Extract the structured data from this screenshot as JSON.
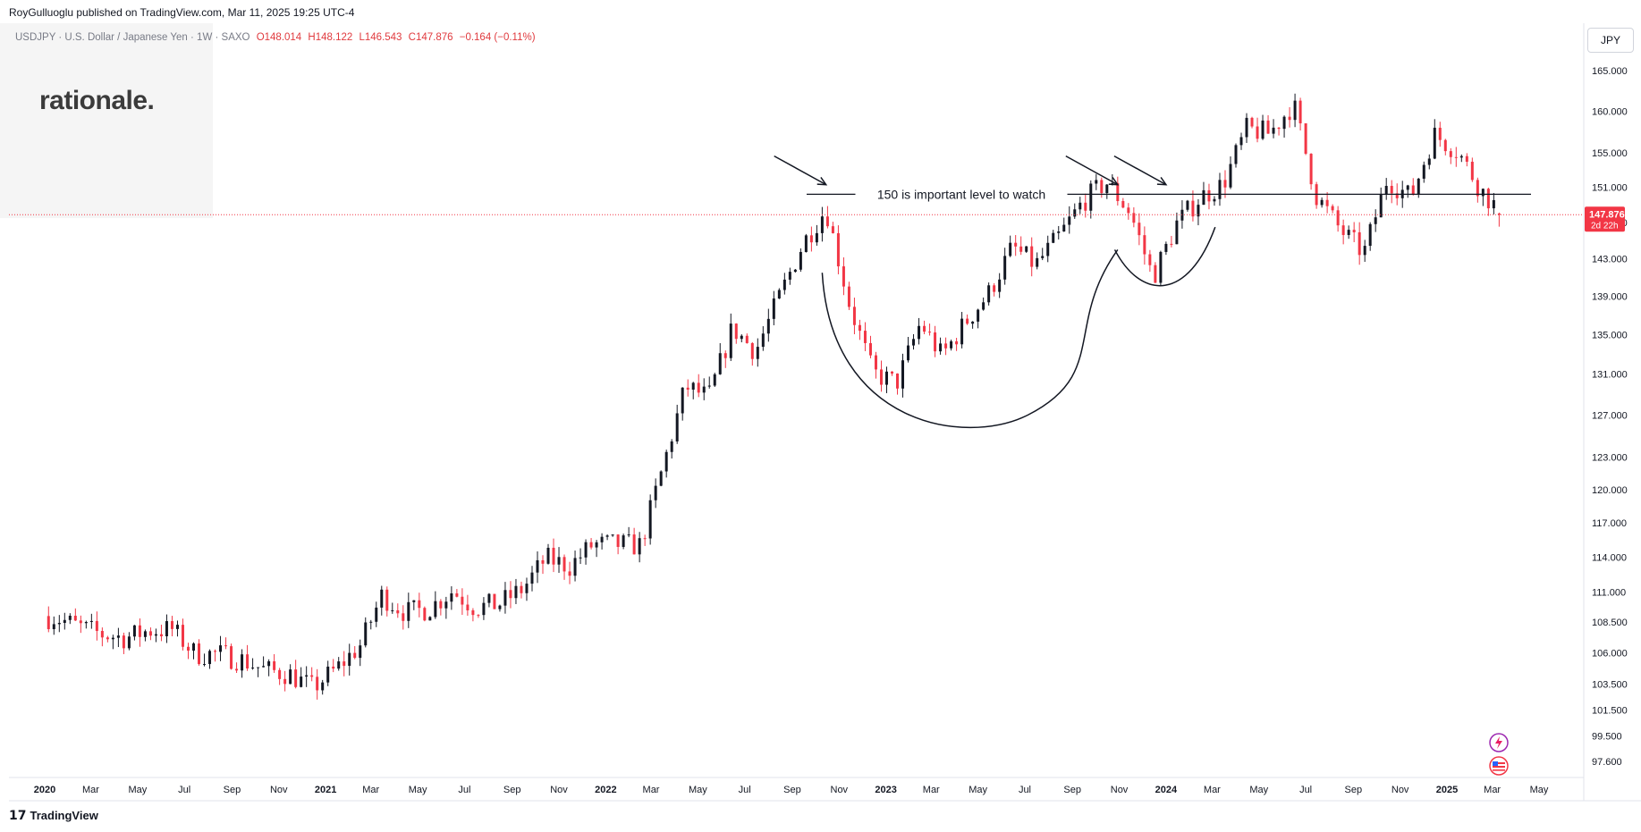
{
  "header": {
    "publisher": "RoyGulluoglu published on TradingView.com, Mar 11, 2025 19:25 UTC-4"
  },
  "legend": {
    "symbol": "USDJPY · U.S. Dollar / Japanese Yen · 1W · SAXO",
    "open": "O148.014",
    "high": "H148.122",
    "low": "L146.543",
    "close": "C147.876",
    "change": "−0.164 (−0.11%)"
  },
  "branding": {
    "watermark": "rationale.",
    "footer": "TradingView"
  },
  "currency_button": "JPY",
  "price_tag": {
    "price": "147.876",
    "countdown": "2d 22h"
  },
  "colors": {
    "up": "#131722",
    "down": "#f23645",
    "current_line": "#f23645",
    "annotation": "#131722"
  },
  "chart_data": {
    "type": "candlestick",
    "title": "",
    "interval": "1W",
    "y_scale": "log",
    "ylim": [
      96.5,
      167
    ],
    "y_ticks": [
      165,
      160,
      155,
      151,
      147,
      143,
      139,
      135,
      131,
      127,
      123,
      120,
      117,
      114,
      111,
      108.5,
      106,
      103.5,
      101.5,
      99.5,
      97.6
    ],
    "y_tick_labels": [
      "165.000",
      "160.000",
      "155.000",
      "151.000",
      "147.000",
      "143.000",
      "139.000",
      "135.000",
      "131.000",
      "127.000",
      "123.000",
      "120.000",
      "117.000",
      "114.000",
      "111.000",
      "108.500",
      "106.000",
      "103.500",
      "101.500",
      "99.500",
      "97.600"
    ],
    "x_ticks": [
      {
        "label": "2020",
        "date": "2020-01-01",
        "bold": true
      },
      {
        "label": "Mar",
        "date": "2020-03-01"
      },
      {
        "label": "May",
        "date": "2020-05-01"
      },
      {
        "label": "Jul",
        "date": "2020-07-01"
      },
      {
        "label": "Sep",
        "date": "2020-09-01"
      },
      {
        "label": "Nov",
        "date": "2020-11-01"
      },
      {
        "label": "2021",
        "date": "2021-01-01",
        "bold": true
      },
      {
        "label": "Mar",
        "date": "2021-03-01"
      },
      {
        "label": "May",
        "date": "2021-05-01"
      },
      {
        "label": "Jul",
        "date": "2021-07-01"
      },
      {
        "label": "Sep",
        "date": "2021-09-01"
      },
      {
        "label": "Nov",
        "date": "2021-11-01"
      },
      {
        "label": "2022",
        "date": "2022-01-01",
        "bold": true
      },
      {
        "label": "Mar",
        "date": "2022-03-01"
      },
      {
        "label": "May",
        "date": "2022-05-01"
      },
      {
        "label": "Jul",
        "date": "2022-07-01"
      },
      {
        "label": "Sep",
        "date": "2022-09-01"
      },
      {
        "label": "Nov",
        "date": "2022-11-01"
      },
      {
        "label": "2023",
        "date": "2023-01-01",
        "bold": true
      },
      {
        "label": "Mar",
        "date": "2023-03-01"
      },
      {
        "label": "May",
        "date": "2023-05-01"
      },
      {
        "label": "Jul",
        "date": "2023-07-01"
      },
      {
        "label": "Sep",
        "date": "2023-09-01"
      },
      {
        "label": "Nov",
        "date": "2023-11-01"
      },
      {
        "label": "2024",
        "date": "2024-01-01",
        "bold": true
      },
      {
        "label": "Mar",
        "date": "2024-03-01"
      },
      {
        "label": "May",
        "date": "2024-05-01"
      },
      {
        "label": "Jul",
        "date": "2024-07-01"
      },
      {
        "label": "Sep",
        "date": "2024-09-01"
      },
      {
        "label": "Nov",
        "date": "2024-11-01"
      },
      {
        "label": "2025",
        "date": "2025-01-01",
        "bold": true
      },
      {
        "label": "Mar",
        "date": "2025-03-01"
      },
      {
        "label": "May",
        "date": "2025-05-01"
      }
    ],
    "monthly_close": [
      {
        "month": "2020-01",
        "close": 108.9
      },
      {
        "month": "2020-02",
        "close": 108.1
      },
      {
        "month": "2020-03",
        "close": 107.5
      },
      {
        "month": "2020-04",
        "close": 107.2
      },
      {
        "month": "2020-05",
        "close": 107.8
      },
      {
        "month": "2020-06",
        "close": 107.9
      },
      {
        "month": "2020-07",
        "close": 105.9
      },
      {
        "month": "2020-08",
        "close": 105.9
      },
      {
        "month": "2020-09",
        "close": 105.4
      },
      {
        "month": "2020-10",
        "close": 104.6
      },
      {
        "month": "2020-11",
        "close": 104.3
      },
      {
        "month": "2020-12",
        "close": 103.2
      },
      {
        "month": "2021-01",
        "close": 104.7
      },
      {
        "month": "2021-02",
        "close": 106.6
      },
      {
        "month": "2021-03",
        "close": 110.7
      },
      {
        "month": "2021-04",
        "close": 109.3
      },
      {
        "month": "2021-05",
        "close": 109.6
      },
      {
        "month": "2021-06",
        "close": 111.1
      },
      {
        "month": "2021-07",
        "close": 109.7
      },
      {
        "month": "2021-08",
        "close": 110.0
      },
      {
        "month": "2021-09",
        "close": 111.3
      },
      {
        "month": "2021-10",
        "close": 113.9
      },
      {
        "month": "2021-11",
        "close": 113.2
      },
      {
        "month": "2021-12",
        "close": 115.1
      },
      {
        "month": "2022-01",
        "close": 115.1
      },
      {
        "month": "2022-02",
        "close": 115.0
      },
      {
        "month": "2022-03",
        "close": 121.7
      },
      {
        "month": "2022-04",
        "close": 129.8
      },
      {
        "month": "2022-05",
        "close": 128.7
      },
      {
        "month": "2022-06",
        "close": 135.7
      },
      {
        "month": "2022-07",
        "close": 133.3
      },
      {
        "month": "2022-08",
        "close": 138.9
      },
      {
        "month": "2022-09",
        "close": 144.7
      },
      {
        "month": "2022-10",
        "close": 148.6
      },
      {
        "month": "2022-11",
        "close": 138.0
      },
      {
        "month": "2022-12",
        "close": 131.1
      },
      {
        "month": "2023-01",
        "close": 130.1
      },
      {
        "month": "2023-02",
        "close": 136.2
      },
      {
        "month": "2023-03",
        "close": 132.8
      },
      {
        "month": "2023-04",
        "close": 136.3
      },
      {
        "month": "2023-05",
        "close": 139.3
      },
      {
        "month": "2023-06",
        "close": 144.3
      },
      {
        "month": "2023-07",
        "close": 142.3
      },
      {
        "month": "2023-08",
        "close": 145.5
      },
      {
        "month": "2023-09",
        "close": 149.4
      },
      {
        "month": "2023-10",
        "close": 151.6
      },
      {
        "month": "2023-11",
        "close": 148.2
      },
      {
        "month": "2023-12",
        "close": 141.0
      },
      {
        "month": "2024-01",
        "close": 146.9
      },
      {
        "month": "2024-02",
        "close": 149.9
      },
      {
        "month": "2024-03",
        "close": 151.3
      },
      {
        "month": "2024-04",
        "close": 157.8
      },
      {
        "month": "2024-05",
        "close": 157.3
      },
      {
        "month": "2024-06",
        "close": 160.9
      },
      {
        "month": "2024-07",
        "close": 150.0
      },
      {
        "month": "2024-08",
        "close": 146.2
      },
      {
        "month": "2024-09",
        "close": 143.6
      },
      {
        "month": "2024-10",
        "close": 152.0
      },
      {
        "month": "2024-11",
        "close": 149.8
      },
      {
        "month": "2024-12",
        "close": 157.2
      },
      {
        "month": "2025-01",
        "close": 155.2
      },
      {
        "month": "2025-02",
        "close": 150.6
      },
      {
        "month": "2025-03",
        "close": 147.876
      }
    ],
    "annotations": [
      {
        "kind": "horizontal_line",
        "price": 150.2,
        "label": "150 is important level to watch"
      },
      {
        "kind": "cup_arc",
        "from_date": "2022-10-10",
        "to_date": "2023-10-30"
      },
      {
        "kind": "handle_arc",
        "from_date": "2023-11-01",
        "to_date": "2024-03-05"
      },
      {
        "kind": "arrow",
        "near_date": "2022-10-15"
      },
      {
        "kind": "arrow",
        "near_date": "2023-10-30"
      },
      {
        "kind": "arrow",
        "near_date": "2024-01-01"
      }
    ],
    "current_price_line": 147.876
  }
}
